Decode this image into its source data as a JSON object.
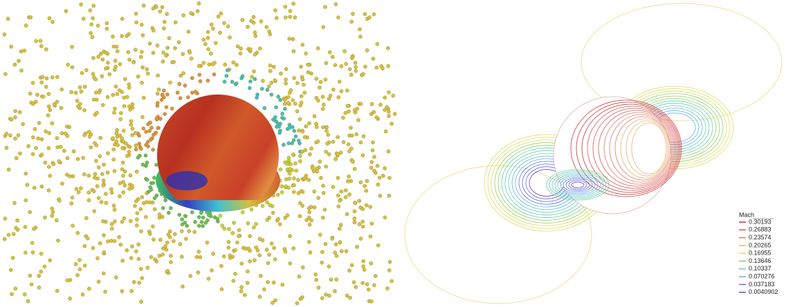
{
  "legend": {
    "title": "Mach",
    "entries": [
      {
        "value": 0.30193,
        "color": "#cc3333"
      },
      {
        "value": 0.26883,
        "color": "#dd5555"
      },
      {
        "value": 0.23574,
        "color": "#e07a6a"
      },
      {
        "value": 0.20265,
        "color": "#e8b070"
      },
      {
        "value": 0.16955,
        "color": "#d8dc60"
      },
      {
        "value": 0.13646,
        "color": "#90d060"
      },
      {
        "value": 0.10337,
        "color": "#60d0a8"
      },
      {
        "value": 0.070276,
        "color": "#60b4e0"
      },
      {
        "value": 0.037183,
        "color": "#6070e0"
      },
      {
        "value": 0.0040902,
        "color": "#7040c0"
      }
    ]
  }
}
